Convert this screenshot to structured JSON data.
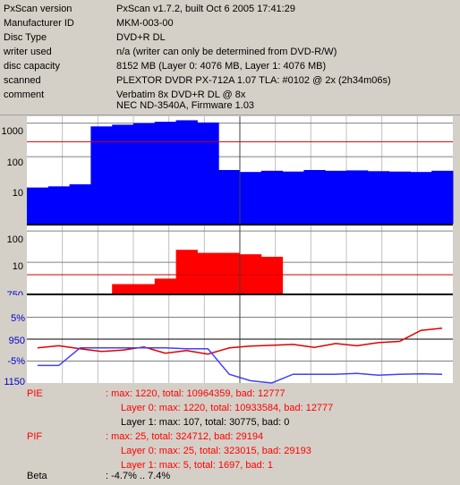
{
  "info": {
    "rows": [
      {
        "key": "PxScan version",
        "value": "PxScan v1.7.2, built Oct  6 2005 17:41:29"
      },
      {
        "key": "Manufacturer ID",
        "value": "MKM-003-00"
      },
      {
        "key": "Disc Type",
        "value": "DVD+R DL"
      },
      {
        "key": "writer used",
        "value": "n/a (writer can only be determined from DVD-R/W)"
      },
      {
        "key": "disc capacity",
        "value": "8152 MB (Layer 0: 4076 MB,  Layer 1: 4076 MB)"
      },
      {
        "key": "scanned",
        "value": "PLEXTOR DVDR  PX-712A 1.07 TLA: #0102 @ 2x (2h34m06s)"
      },
      {
        "key": "comment",
        "value": "Verbatim 8x DVD+R DL @ 8x"
      },
      {
        "key": "",
        "value": "NEC ND-3540A, Firmware 1.03"
      }
    ]
  },
  "colors": {
    "pie": "#0000ff",
    "pif": "#ff0000",
    "threshold": "#cc0000",
    "grid": "#808080",
    "jitter": "#e00000",
    "beta": "#4040ff"
  },
  "axis_labels": {
    "pie": [
      "1000",
      "100",
      "10"
    ],
    "pif": [
      "100",
      "10"
    ],
    "pif_bottom": "750",
    "jitter": [
      "5%",
      "950",
      "-5%"
    ],
    "jitter_bottom": "1150"
  },
  "chart_data": [
    {
      "type": "area",
      "ylim": [
        1,
        1600
      ],
      "yscale": "log",
      "threshold": 280,
      "layer_break_fraction": 0.5,
      "series": [
        {
          "name": "PIE",
          "values": [
            12,
            13,
            15,
            800,
            900,
            1000,
            1100,
            1220,
            1050,
            40,
            35,
            38,
            36,
            40,
            38,
            39,
            37,
            36,
            35,
            38
          ]
        }
      ]
    },
    {
      "type": "area",
      "ylim": [
        1,
        150
      ],
      "yscale": "log",
      "threshold": 4,
      "series": [
        {
          "name": "PIF",
          "values": [
            0,
            0,
            0,
            1,
            2,
            2,
            3,
            25,
            20,
            20,
            18,
            15,
            1,
            1,
            1,
            1,
            1,
            1,
            1,
            1
          ]
        }
      ]
    },
    {
      "type": "line",
      "ylim": [
        -10,
        10
      ],
      "series": [
        {
          "name": "Beta",
          "values": [
            -2.0,
            -1.5,
            -2.2,
            -2.8,
            -2.5,
            -1.8,
            -3.2,
            -2.6,
            -3.4,
            -2.0,
            -1.6,
            -1.4,
            -1.2,
            -1.9,
            -1.0,
            -1.5,
            -0.8,
            -0.5,
            2.0,
            2.5
          ]
        },
        {
          "name": "Jitter",
          "values": [
            -6.0,
            -6.0,
            -2.0,
            -2.0,
            -2.0,
            -2.0,
            -2.0,
            -2.2,
            -2.2,
            -8.0,
            -9.5,
            -10.0,
            -8.0,
            -8.0,
            -8.0,
            -7.8,
            -8.2,
            -8.0,
            -7.9,
            -8.0
          ]
        }
      ]
    }
  ],
  "summary": {
    "pie_label": "PIE",
    "pie_main": ": max: 1220, total: 10964359, bad: 12777",
    "pie_l0": "Layer 0: max: 1220, total: 10933584, bad: 12777",
    "pie_l1": "Layer 1: max: 107, total: 30775, bad: 0",
    "pif_label": "PIF",
    "pif_main": ": max: 25, total: 324712, bad: 29194",
    "pif_l0": "Layer 0: max: 25, total: 323015, bad: 29193",
    "pif_l1": "Layer 1: max: 5, total: 1697, bad: 1",
    "beta_label": "Beta",
    "beta_value": ": -4.7% .. 7.4%"
  }
}
